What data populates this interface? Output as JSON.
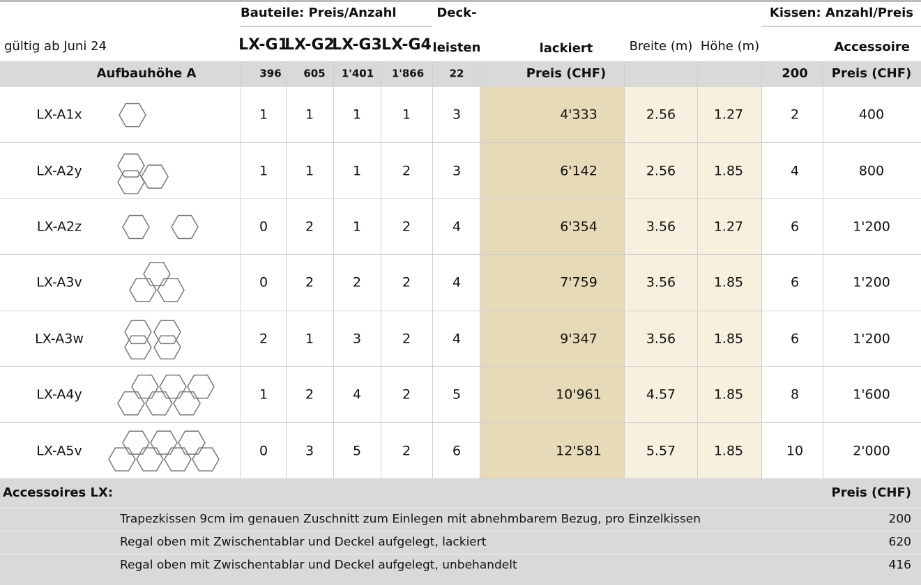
{
  "header": {
    "bauteile": "Bauteile: Preis/Anzahl",
    "deck1": "Deck-",
    "kissen": "Kissen: Anzahl/Preis",
    "valid": "gültig ab Juni 24",
    "models": [
      "LX-G1",
      "LX-G2",
      "LX-G3",
      "LX-G4"
    ],
    "deck2": "leisten",
    "lackiert": "lackiert",
    "breite": "Breite (m)",
    "hoehe": "Höhe (m)",
    "accessoire": "Accessoire"
  },
  "table": {
    "header": [
      "Aufbauhöhe A",
      "396",
      "605",
      "1'401",
      "1'866",
      "22",
      "Preis (CHF)",
      "200",
      "Preis (CHF)"
    ],
    "rows": [
      [
        "LX-A1x",
        1,
        1,
        1,
        1,
        3,
        "4'333",
        2.56,
        1.27,
        2,
        400
      ],
      [
        "LX-A2y",
        1,
        1,
        1,
        2,
        3,
        "6'142",
        2.56,
        1.85,
        4,
        800
      ],
      [
        "LX-A2z",
        0,
        2,
        1,
        2,
        4,
        "6'354",
        3.56,
        1.27,
        6,
        "1'200"
      ],
      [
        "LX-A3v",
        0,
        2,
        2,
        2,
        4,
        "7'759",
        3.56,
        1.85,
        6,
        "1'200"
      ],
      [
        "LX-A3w",
        2,
        1,
        3,
        2,
        4,
        "9'347",
        3.56,
        1.85,
        6,
        "1'200"
      ],
      [
        "LX-A4y",
        1,
        2,
        4,
        2,
        5,
        "10'961",
        4.57,
        1.85,
        8,
        "1'600"
      ],
      [
        "LX-A5v",
        0,
        3,
        5,
        2,
        6,
        "12'581",
        5.57,
        1.85,
        10,
        "2'000"
      ]
    ]
  },
  "footer": {
    "title": "Accessoires LX:",
    "price_header": "Preis (CHF)",
    "items": [
      {
        "text": "Trapezkissen 9cm im genauen Zuschnitt zum Einlegen mit abnehmbarem Bezug, pro Einzelkissen",
        "price": 200
      },
      {
        "text": "Regal oben mit Zwischentablar und Deckel aufgelegt, lackiert",
        "price": 620
      },
      {
        "text": "Regal oben mit Zwischentablar und Deckel aufgelegt, unbehandelt",
        "price": 416
      }
    ]
  }
}
